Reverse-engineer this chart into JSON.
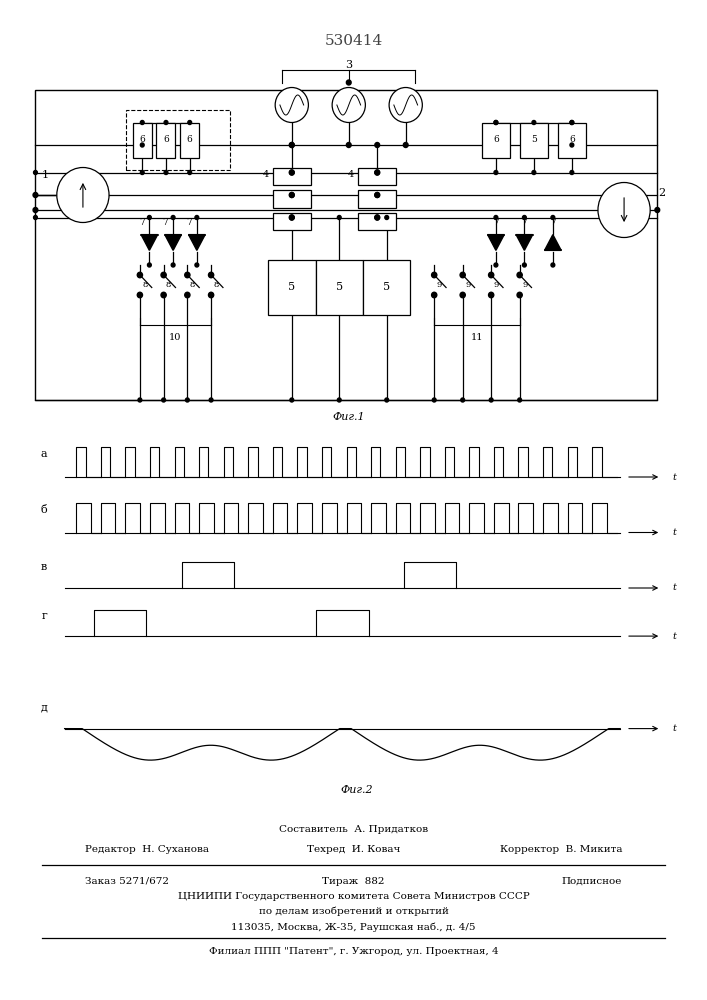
{
  "title": "530414",
  "fig1_label": "Фиг.1",
  "fig2_label": "Фиг.2",
  "bg_color": "#ffffff",
  "line_color": "#000000",
  "footer": {
    "line1_center": "Составитель  А. Придатков",
    "line2_left": "Редактор  Н. Суханова",
    "line2_center": "Техред  И. Ковач",
    "line2_right": "Корректор  В. Микита",
    "line3_left": "Заказ 5271/672",
    "line3_center": "Тираж  882",
    "line3_right": "Подписное",
    "line4": "ЦНИИПИ Государственного комитета Совета Министров СССР",
    "line5": "по делам изобретений и открытий",
    "line6": "113035, Москва, Ж-35, Раушская наб., д. 4/5",
    "line7": "Филиал ППП \"Патент\", г. Ужгород, ул. Проектная, 4"
  }
}
